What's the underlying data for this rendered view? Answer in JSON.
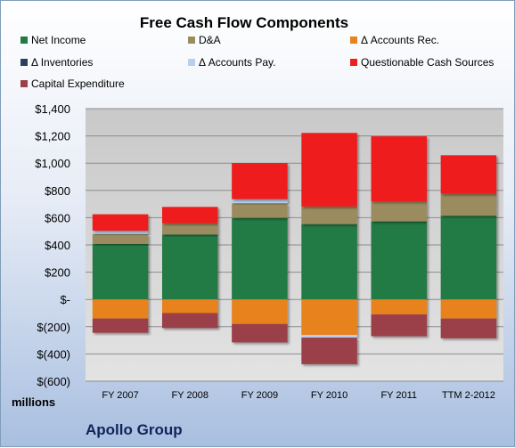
{
  "chart_data": {
    "type": "bar",
    "stacked": true,
    "title": "Free Cash Flow Components",
    "units_label": "millions",
    "company": "Apollo Group",
    "categories": [
      "FY 2007",
      "FY 2008",
      "FY 2009",
      "FY 2010",
      "FY 2011",
      "TTM 2-2012"
    ],
    "series": [
      {
        "name": "Net Income",
        "color": "#217a45",
        "values": [
          408,
          477,
          599,
          553,
          573,
          615
        ]
      },
      {
        "name": "D&A",
        "color": "#9b8c5e",
        "values": [
          72,
          82,
          107,
          129,
          146,
          160
        ]
      },
      {
        "name": "Δ Accounts Rec.",
        "color": "#e8821c",
        "values": [
          -140,
          -100,
          -180,
          -260,
          -110,
          -140
        ]
      },
      {
        "name": "Δ Inventories",
        "color": "#2b3f5e",
        "values": [
          0,
          0,
          0,
          0,
          0,
          0
        ]
      },
      {
        "name": "Δ Accounts Pay.",
        "color": "#b8d0ec",
        "values": [
          25,
          0,
          30,
          -20,
          0,
          0
        ]
      },
      {
        "name": "Questionable Cash Sources",
        "color": "#ee1f1f",
        "values": [
          120,
          120,
          265,
          540,
          478,
          283
        ]
      },
      {
        "name": "Capital Expenditure",
        "color": "#9b3f48",
        "values": [
          -105,
          -110,
          -135,
          -195,
          -160,
          -145
        ]
      }
    ],
    "ylim": [
      -600,
      1400
    ],
    "yticks": [
      1400,
      1200,
      1000,
      800,
      600,
      400,
      200,
      0,
      -200,
      -400,
      -600
    ],
    "ytick_labels": [
      "$1,400",
      "$1,200",
      "$1,000",
      "$800",
      "$600",
      "$400",
      "$200",
      "$-",
      "$(200)",
      "$(400)",
      "$(600)"
    ],
    "grid": true,
    "legend_position": "top"
  }
}
